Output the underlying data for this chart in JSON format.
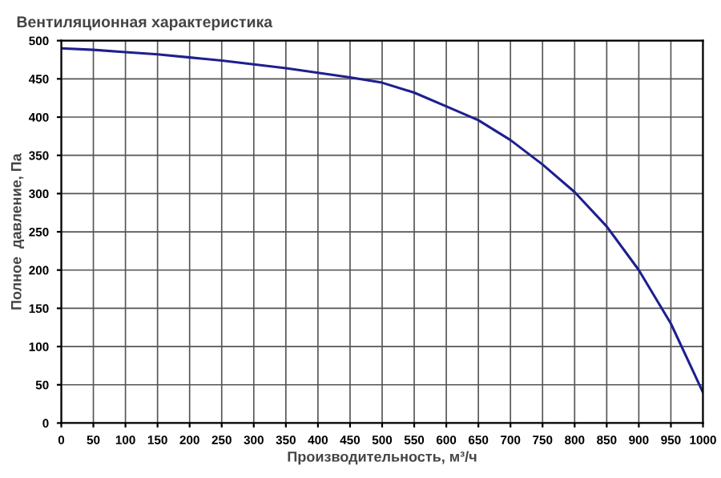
{
  "chart_data": {
    "type": "line",
    "title": "Вентиляционная характеристика",
    "xlabel": "Производительность, м³/ч",
    "ylabel": "Полное  давление, Па",
    "x": [
      0,
      50,
      100,
      150,
      200,
      250,
      300,
      350,
      400,
      450,
      500,
      550,
      600,
      650,
      700,
      750,
      800,
      850,
      900,
      950,
      1000
    ],
    "series": [
      {
        "color": "#1f1f8f",
        "values": [
          490,
          488,
          485,
          482,
          478,
          474,
          469,
          464,
          458,
          452,
          445,
          432,
          414,
          396,
          370,
          338,
          302,
          257,
          200,
          130,
          40
        ]
      }
    ],
    "xlim": [
      0,
      1000
    ],
    "ylim": [
      0,
      500
    ],
    "xticks": [
      0,
      50,
      100,
      150,
      200,
      250,
      300,
      350,
      400,
      450,
      500,
      550,
      600,
      650,
      700,
      750,
      800,
      850,
      900,
      950,
      1000
    ],
    "yticks": [
      0,
      50,
      100,
      150,
      200,
      250,
      300,
      350,
      400,
      450,
      500
    ],
    "grid": true,
    "marker": "none",
    "line_style": "solid"
  }
}
